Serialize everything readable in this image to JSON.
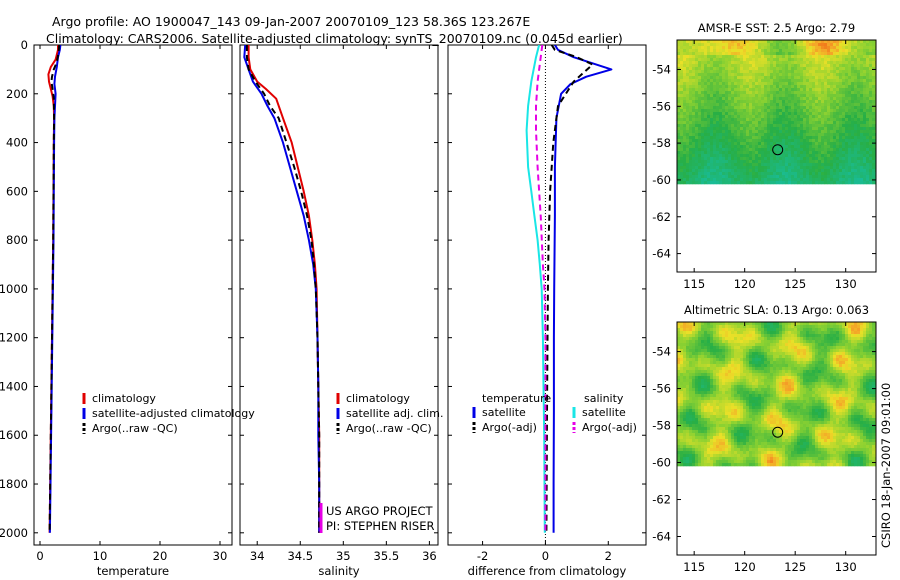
{
  "header": {
    "line1": "Argo profile: AO 1900047_143 09-Jan-2007 20070109_123 58.36S 123.267E",
    "line2": "Climatology: CARS2006. Satellite-adjusted climatology: synTS_20070109.nc (0.045d earlier)"
  },
  "side_text": "CSIRO 18-Jan-2007 09:01:00",
  "project_lines": [
    "US ARGO PROJECT",
    "PI: STEPHEN RISER"
  ],
  "colors": {
    "red": "#e00000",
    "blue": "#0000e6",
    "black": "#000000",
    "cyan": "#19e6e6",
    "magenta": "#e600e6"
  },
  "chart_data": [
    {
      "id": "temperature",
      "type": "line",
      "xlabel": "temperature",
      "ylabel": "",
      "xlim": [
        -1,
        32
      ],
      "ylim": [
        2050,
        0
      ],
      "xticks": [
        0,
        10,
        20,
        30
      ],
      "yticks": [
        0,
        200,
        400,
        600,
        800,
        1000,
        1200,
        1400,
        1600,
        1800,
        2000
      ],
      "legend": [
        "climatology",
        "satellite-adjusted climatology",
        "Argo(..raw -QC)"
      ],
      "series": [
        {
          "name": "climatology",
          "color": "red",
          "dash": false,
          "points": [
            [
              3.0,
              0
            ],
            [
              3.0,
              20
            ],
            [
              2.6,
              60
            ],
            [
              1.8,
              90
            ],
            [
              1.4,
              120
            ],
            [
              1.5,
              150
            ],
            [
              1.8,
              180
            ],
            [
              2.1,
              210
            ],
            [
              2.3,
              250
            ],
            [
              2.35,
              300
            ],
            [
              2.3,
              400
            ],
            [
              2.25,
              600
            ],
            [
              2.2,
              800
            ],
            [
              2.1,
              1000
            ],
            [
              2.0,
              1200
            ],
            [
              1.9,
              1400
            ],
            [
              1.8,
              1600
            ],
            [
              1.7,
              1800
            ],
            [
              1.6,
              2000
            ]
          ]
        },
        {
          "name": "satellite-adjusted climatology",
          "color": "blue",
          "dash": false,
          "points": [
            [
              3.4,
              0
            ],
            [
              3.3,
              20
            ],
            [
              3.0,
              50
            ],
            [
              2.8,
              90
            ],
            [
              2.5,
              130
            ],
            [
              2.4,
              160
            ],
            [
              2.6,
              200
            ],
            [
              2.5,
              250
            ],
            [
              2.4,
              300
            ],
            [
              2.35,
              400
            ],
            [
              2.3,
              600
            ],
            [
              2.25,
              800
            ],
            [
              2.15,
              1000
            ],
            [
              2.05,
              1200
            ],
            [
              1.95,
              1400
            ],
            [
              1.85,
              1600
            ],
            [
              1.75,
              1800
            ],
            [
              1.65,
              2000
            ]
          ]
        },
        {
          "name": "Argo(..raw -QC)",
          "color": "black",
          "dash": true,
          "points": [
            [
              3.2,
              0
            ],
            [
              3.1,
              30
            ],
            [
              2.8,
              70
            ],
            [
              2.3,
              100
            ],
            [
              2.0,
              130
            ],
            [
              1.9,
              150
            ],
            [
              2.1,
              180
            ],
            [
              2.3,
              220
            ],
            [
              2.35,
              300
            ],
            [
              2.3,
              400
            ],
            [
              2.25,
              600
            ],
            [
              2.2,
              800
            ],
            [
              2.1,
              1000
            ],
            [
              2.0,
              1200
            ],
            [
              1.9,
              1400
            ],
            [
              1.8,
              1600
            ],
            [
              1.7,
              1800
            ],
            [
              1.6,
              2000
            ]
          ]
        }
      ]
    },
    {
      "id": "salinity",
      "type": "line",
      "xlabel": "salinity",
      "ylabel": "",
      "xlim": [
        33.8,
        36.1
      ],
      "ylim": [
        2050,
        0
      ],
      "xticks": [
        34,
        34.5,
        35,
        35.5,
        36
      ],
      "yticks": [
        0,
        200,
        400,
        600,
        800,
        1000,
        1200,
        1400,
        1600,
        1800,
        2000
      ],
      "legend": [
        "climatology",
        "satellite adj. clim.",
        "Argo(..raw -QC)"
      ],
      "series": [
        {
          "name": "climatology",
          "color": "red",
          "dash": false,
          "points": [
            [
              33.9,
              0
            ],
            [
              33.9,
              50
            ],
            [
              33.92,
              100
            ],
            [
              34.0,
              150
            ],
            [
              34.1,
              180
            ],
            [
              34.22,
              220
            ],
            [
              34.3,
              300
            ],
            [
              34.4,
              400
            ],
            [
              34.47,
              500
            ],
            [
              34.54,
              600
            ],
            [
              34.6,
              700
            ],
            [
              34.64,
              800
            ],
            [
              34.67,
              900
            ],
            [
              34.69,
              1000
            ],
            [
              34.7,
              1200
            ],
            [
              34.71,
              1400
            ],
            [
              34.72,
              1600
            ],
            [
              34.72,
              1800
            ],
            [
              34.72,
              2000
            ]
          ]
        },
        {
          "name": "satellite adj. clim.",
          "color": "blue",
          "dash": false,
          "points": [
            [
              33.86,
              0
            ],
            [
              33.85,
              50
            ],
            [
              33.9,
              100
            ],
            [
              33.95,
              150
            ],
            [
              34.05,
              200
            ],
            [
              34.12,
              250
            ],
            [
              34.2,
              300
            ],
            [
              34.3,
              400
            ],
            [
              34.38,
              500
            ],
            [
              34.46,
              600
            ],
            [
              34.54,
              700
            ],
            [
              34.6,
              800
            ],
            [
              34.65,
              900
            ],
            [
              34.68,
              1000
            ],
            [
              34.7,
              1200
            ],
            [
              34.71,
              1400
            ],
            [
              34.71,
              1600
            ],
            [
              34.72,
              1800
            ],
            [
              34.72,
              2000
            ]
          ]
        },
        {
          "name": "Argo(..raw -QC)",
          "color": "black",
          "dash": true,
          "points": [
            [
              33.88,
              0
            ],
            [
              33.88,
              50
            ],
            [
              33.9,
              100
            ],
            [
              33.98,
              150
            ],
            [
              34.08,
              200
            ],
            [
              34.15,
              250
            ],
            [
              34.25,
              300
            ],
            [
              34.34,
              400
            ],
            [
              34.43,
              500
            ],
            [
              34.51,
              600
            ],
            [
              34.58,
              700
            ],
            [
              34.63,
              800
            ],
            [
              34.66,
              900
            ],
            [
              34.68,
              1000
            ],
            [
              34.7,
              1200
            ],
            [
              34.71,
              1400
            ],
            [
              34.72,
              1600
            ],
            [
              34.72,
              1800
            ],
            [
              34.72,
              2000
            ]
          ]
        }
      ]
    },
    {
      "id": "difference",
      "type": "line",
      "xlabel": "difference from climatology",
      "ylabel": "",
      "xlim": [
        -3.1,
        3.2
      ],
      "ylim": [
        2050,
        0
      ],
      "xticks": [
        -2,
        0,
        2
      ],
      "yticks": [
        0,
        200,
        400,
        600,
        800,
        1000,
        1200,
        1400,
        1600,
        1800,
        2000
      ],
      "legend_left_title": "temperature",
      "legend_right_title": "salinity",
      "legend_left": [
        "satellite",
        "Argo(-adj)"
      ],
      "legend_right": [
        "satellite",
        "Argo(-adj)"
      ],
      "series": [
        {
          "name": "temperature satellite",
          "color": "blue",
          "dash": false,
          "points": [
            [
              0.3,
              0
            ],
            [
              0.4,
              20
            ],
            [
              0.9,
              50
            ],
            [
              2.1,
              100
            ],
            [
              1.3,
              130
            ],
            [
              0.8,
              160
            ],
            [
              0.5,
              200
            ],
            [
              0.35,
              300
            ],
            [
              0.3,
              500
            ],
            [
              0.3,
              700
            ],
            [
              0.28,
              1000
            ],
            [
              0.27,
              1200
            ],
            [
              0.27,
              1500
            ],
            [
              0.26,
              1800
            ],
            [
              0.26,
              2000
            ]
          ]
        },
        {
          "name": "temperature Argo(-adj)",
          "color": "black",
          "dash": true,
          "points": [
            [
              0.2,
              0
            ],
            [
              0.3,
              20
            ],
            [
              1.0,
              50
            ],
            [
              1.5,
              80
            ],
            [
              0.9,
              150
            ],
            [
              0.4,
              250
            ],
            [
              0.25,
              400
            ],
            [
              0.15,
              600
            ],
            [
              0.1,
              800
            ],
            [
              0.08,
              1000
            ],
            [
              0.05,
              1500
            ],
            [
              0.03,
              2000
            ]
          ]
        },
        {
          "name": "salinity satellite",
          "color": "cyan",
          "dash": false,
          "points": [
            [
              -0.2,
              0
            ],
            [
              -0.3,
              50
            ],
            [
              -0.45,
              150
            ],
            [
              -0.55,
              250
            ],
            [
              -0.6,
              350
            ],
            [
              -0.55,
              500
            ],
            [
              -0.45,
              600
            ],
            [
              -0.35,
              700
            ],
            [
              -0.25,
              800
            ],
            [
              -0.18,
              900
            ],
            [
              -0.12,
              1000
            ],
            [
              -0.08,
              1200
            ],
            [
              -0.06,
              1400
            ],
            [
              -0.04,
              1600
            ],
            [
              -0.03,
              1800
            ],
            [
              -0.02,
              2000
            ]
          ]
        },
        {
          "name": "salinity Argo(-adj)",
          "color": "magenta",
          "dash": true,
          "points": [
            [
              -0.1,
              0
            ],
            [
              -0.15,
              50
            ],
            [
              -0.25,
              150
            ],
            [
              -0.3,
              250
            ],
            [
              -0.3,
              350
            ],
            [
              -0.25,
              500
            ],
            [
              -0.15,
              700
            ],
            [
              -0.08,
              900
            ],
            [
              -0.03,
              1000
            ],
            [
              0.0,
              1200
            ],
            [
              0.0,
              2000
            ]
          ]
        }
      ]
    },
    {
      "id": "sst_map",
      "type": "heatmap",
      "title": "AMSR-E SST: 2.5 Argo: 2.79",
      "xlim": [
        113.3,
        133
      ],
      "ylim": [
        -65,
        -52.4
      ],
      "data_ylim": [
        -60.1,
        -52.4
      ],
      "xticks": [
        115,
        120,
        125,
        130
      ],
      "yticks": [
        -54,
        -56,
        -58,
        -60,
        -62,
        -64
      ],
      "marker": [
        123.267,
        -58.36
      ],
      "field": "SST, warm (yellow-orange) north, cool (green-teal) south"
    },
    {
      "id": "sla_map",
      "type": "heatmap",
      "title": "Altimetric SLA: 0.13 Argo: 0.063",
      "xlim": [
        113.3,
        133
      ],
      "ylim": [
        -65,
        -52.4
      ],
      "data_ylim": [
        -60.1,
        -52.4
      ],
      "xticks": [
        115,
        120,
        125,
        130
      ],
      "yticks": [
        -54,
        -56,
        -58,
        -60,
        -62,
        -64
      ],
      "marker": [
        123.267,
        -58.36
      ],
      "field": "sea level anomaly eddies (orange highs, green lows)"
    }
  ]
}
